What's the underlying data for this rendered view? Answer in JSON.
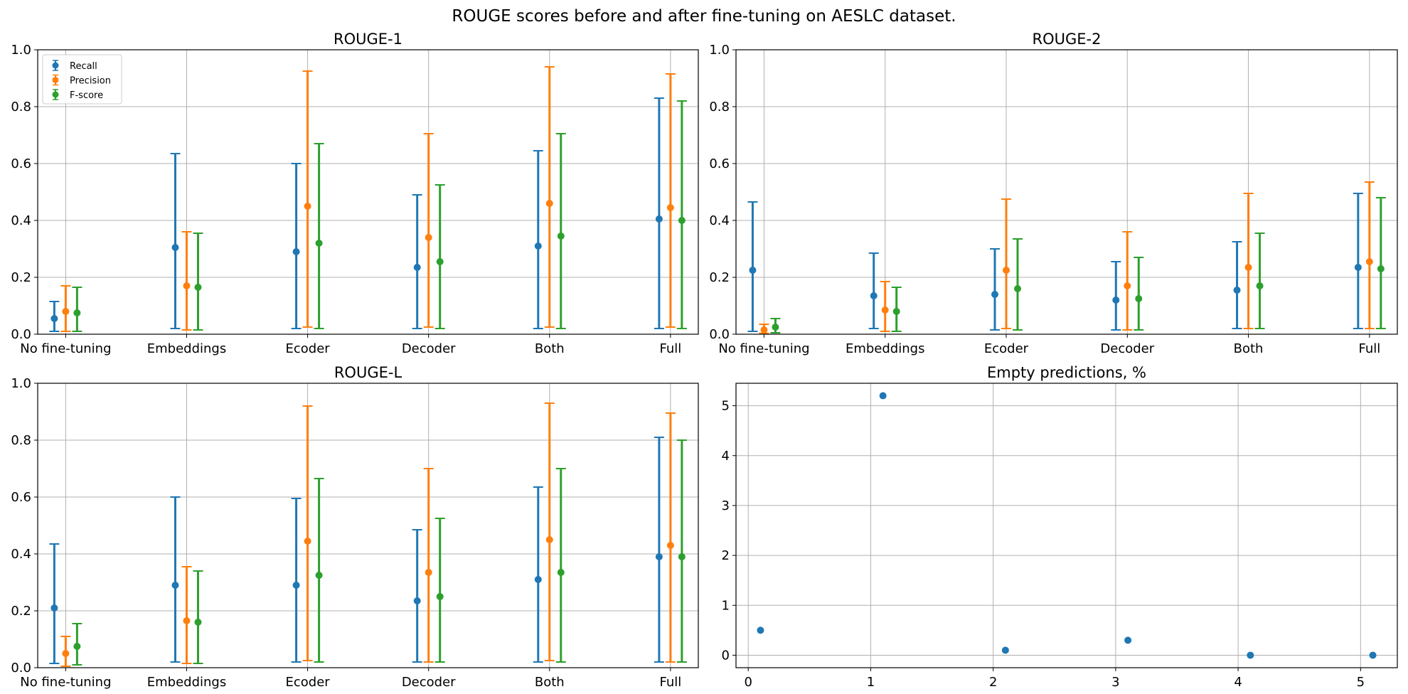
{
  "suptitle": "ROUGE scores before and after fine-tuning on AESLC dataset.",
  "colors": {
    "Recall": "#1f77b4",
    "Precision": "#ff7f0e",
    "F-score": "#2ca02c"
  },
  "chart_data": [
    {
      "type": "errorbar",
      "title": "ROUGE-1",
      "categories": [
        "No fine-tuning",
        "Embeddings",
        "Ecoder",
        "Decoder",
        "Both",
        "Full"
      ],
      "ylim": [
        0,
        1.0
      ],
      "yticks": [
        "0.0",
        "0.2",
        "0.4",
        "0.6",
        "0.8",
        "1.0"
      ],
      "grid": true,
      "legend": {
        "placement": "top-left",
        "entries": [
          "Recall",
          "Precision",
          "F-score"
        ]
      },
      "series": [
        {
          "name": "Recall",
          "values": [
            0.055,
            0.305,
            0.29,
            0.235,
            0.31,
            0.405
          ],
          "lower": [
            0.01,
            0.02,
            0.02,
            0.02,
            0.02,
            0.02
          ],
          "upper": [
            0.115,
            0.635,
            0.6,
            0.49,
            0.645,
            0.83
          ]
        },
        {
          "name": "Precision",
          "values": [
            0.08,
            0.17,
            0.45,
            0.34,
            0.46,
            0.445
          ],
          "lower": [
            0.01,
            0.015,
            0.025,
            0.025,
            0.025,
            0.025
          ],
          "upper": [
            0.17,
            0.36,
            0.925,
            0.705,
            0.94,
            0.915
          ]
        },
        {
          "name": "F-score",
          "values": [
            0.075,
            0.165,
            0.32,
            0.255,
            0.345,
            0.4
          ],
          "lower": [
            0.01,
            0.015,
            0.02,
            0.02,
            0.02,
            0.02
          ],
          "upper": [
            0.165,
            0.355,
            0.67,
            0.525,
            0.705,
            0.82
          ]
        }
      ]
    },
    {
      "type": "errorbar",
      "title": "ROUGE-2",
      "categories": [
        "No fine-tuning",
        "Embeddings",
        "Ecoder",
        "Decoder",
        "Both",
        "Full"
      ],
      "ylim": [
        0,
        1.0
      ],
      "yticks": [
        "0.0",
        "0.2",
        "0.4",
        "0.6",
        "0.8",
        "1.0"
      ],
      "grid": true,
      "series": [
        {
          "name": "Recall",
          "values": [
            0.225,
            0.135,
            0.14,
            0.12,
            0.155,
            0.235
          ],
          "lower": [
            0.01,
            0.02,
            0.015,
            0.015,
            0.02,
            0.02
          ],
          "upper": [
            0.465,
            0.285,
            0.3,
            0.255,
            0.325,
            0.495
          ]
        },
        {
          "name": "Precision",
          "values": [
            0.015,
            0.085,
            0.225,
            0.17,
            0.235,
            0.255
          ],
          "lower": [
            0.003,
            0.01,
            0.02,
            0.015,
            0.02,
            0.02
          ],
          "upper": [
            0.035,
            0.185,
            0.475,
            0.36,
            0.495,
            0.535
          ]
        },
        {
          "name": "F-score",
          "values": [
            0.025,
            0.08,
            0.16,
            0.125,
            0.17,
            0.23
          ],
          "lower": [
            0.005,
            0.01,
            0.015,
            0.015,
            0.02,
            0.02
          ],
          "upper": [
            0.055,
            0.165,
            0.335,
            0.27,
            0.355,
            0.48
          ]
        }
      ]
    },
    {
      "type": "errorbar",
      "title": "ROUGE-L",
      "categories": [
        "No fine-tuning",
        "Embeddings",
        "Ecoder",
        "Decoder",
        "Both",
        "Full"
      ],
      "ylim": [
        0,
        1.0
      ],
      "yticks": [
        "0.0",
        "0.2",
        "0.4",
        "0.6",
        "0.8",
        "1.0"
      ],
      "grid": true,
      "series": [
        {
          "name": "Recall",
          "values": [
            0.21,
            0.29,
            0.29,
            0.235,
            0.31,
            0.39
          ],
          "lower": [
            0.015,
            0.02,
            0.02,
            0.02,
            0.02,
            0.02
          ],
          "upper": [
            0.435,
            0.6,
            0.595,
            0.485,
            0.635,
            0.81
          ]
        },
        {
          "name": "Precision",
          "values": [
            0.05,
            0.165,
            0.445,
            0.335,
            0.45,
            0.43
          ],
          "lower": [
            0.005,
            0.015,
            0.025,
            0.02,
            0.025,
            0.02
          ],
          "upper": [
            0.11,
            0.355,
            0.92,
            0.7,
            0.93,
            0.895
          ]
        },
        {
          "name": "F-score",
          "values": [
            0.075,
            0.16,
            0.325,
            0.25,
            0.335,
            0.39
          ],
          "lower": [
            0.01,
            0.015,
            0.02,
            0.02,
            0.02,
            0.02
          ],
          "upper": [
            0.155,
            0.34,
            0.665,
            0.525,
            0.7,
            0.8
          ]
        }
      ]
    },
    {
      "type": "scatter",
      "title": "Empty predictions, %",
      "xlim": [
        -0.1,
        5.3
      ],
      "ylim": [
        -0.25,
        5.45
      ],
      "xticks": [
        0,
        1,
        2,
        3,
        4,
        5
      ],
      "yticks": [
        0,
        1,
        2,
        3,
        4,
        5
      ],
      "grid": true,
      "series": [
        {
          "name": "",
          "x": [
            0.1,
            1.1,
            2.1,
            3.1,
            4.1,
            5.1
          ],
          "y": [
            0.5,
            5.2,
            0.1,
            0.3,
            0.0,
            0.0
          ]
        }
      ]
    }
  ]
}
